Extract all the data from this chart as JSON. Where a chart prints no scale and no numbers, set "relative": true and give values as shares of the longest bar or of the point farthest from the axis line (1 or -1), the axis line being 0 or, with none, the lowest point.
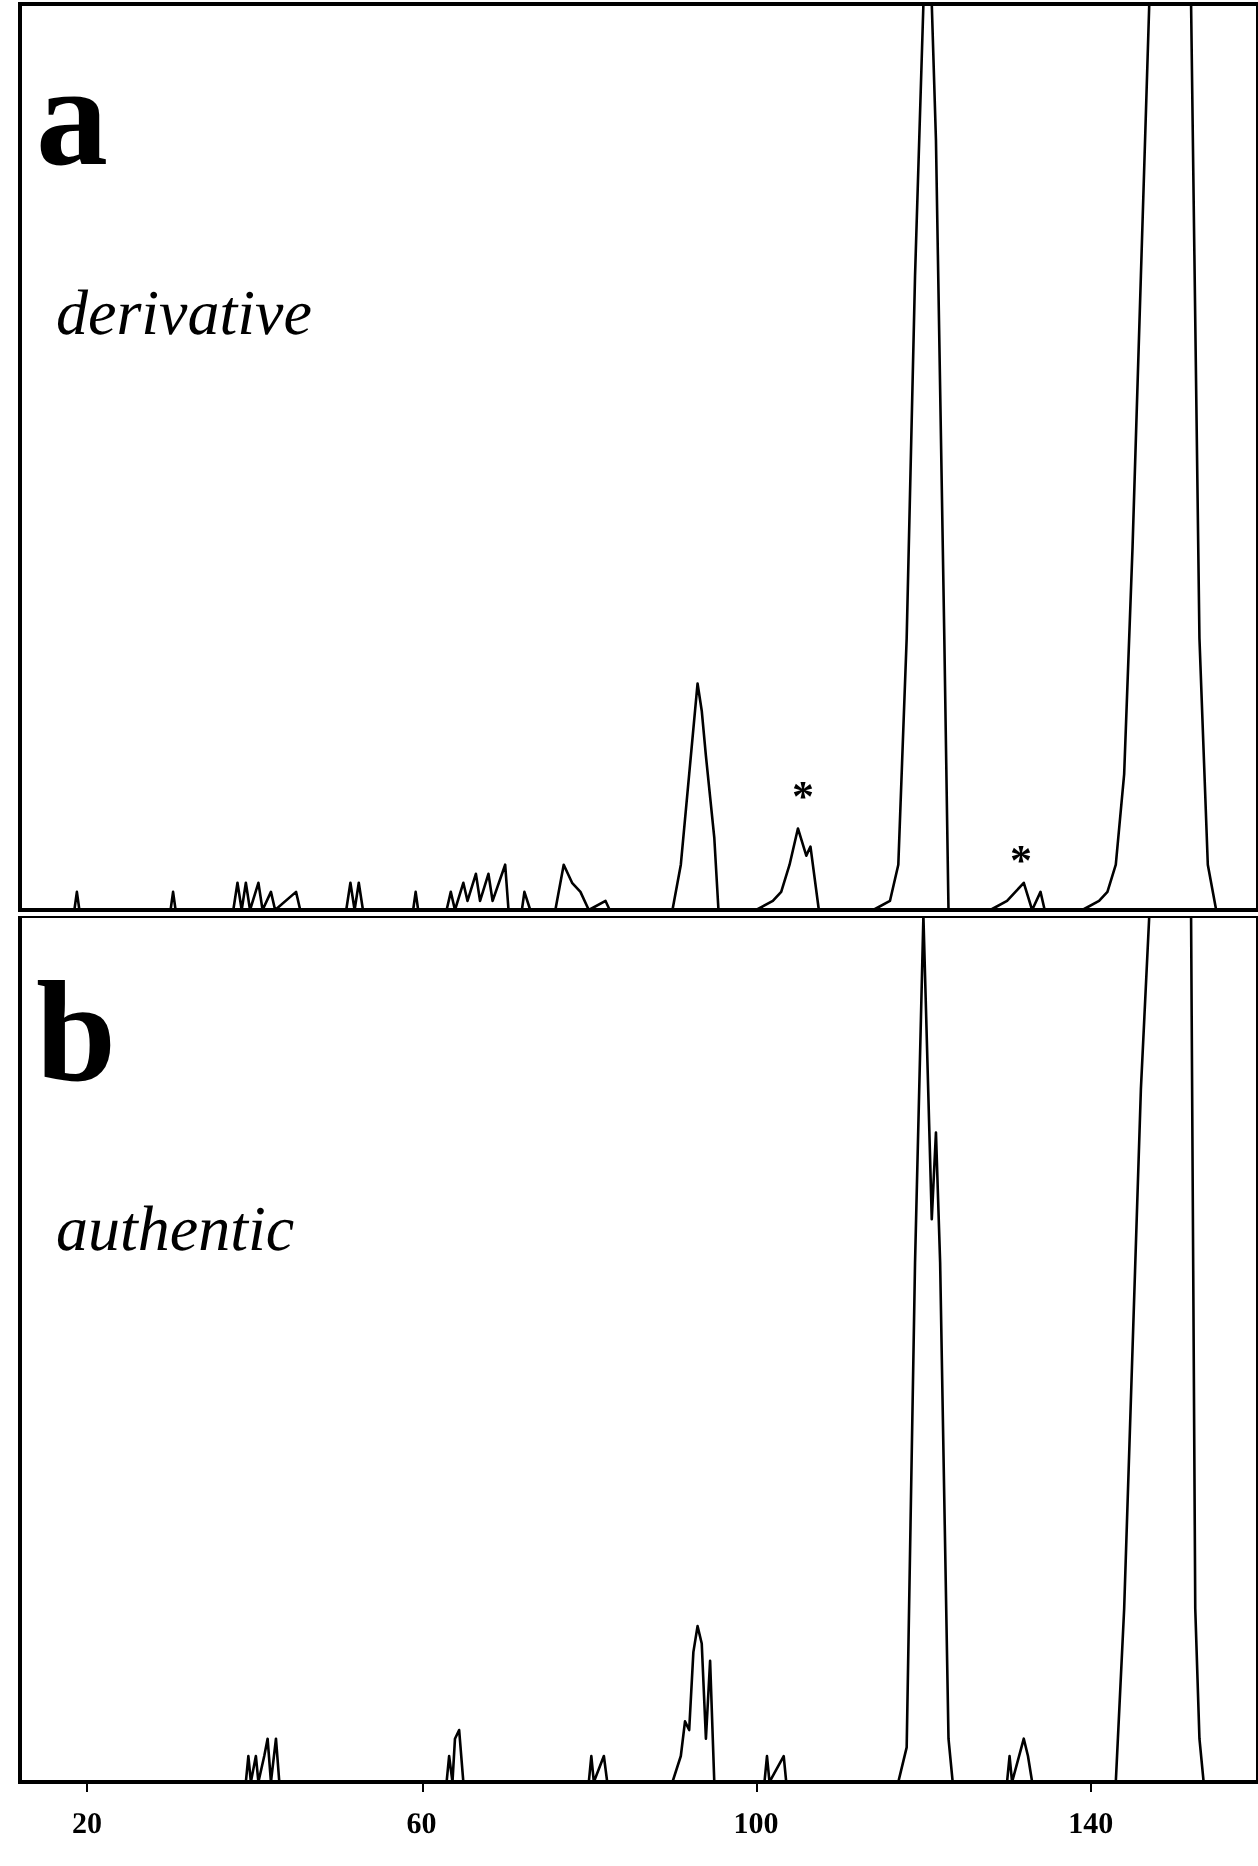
{
  "chart_data": [
    {
      "type": "line",
      "relative": true,
      "color": "#000000",
      "xlim": [
        12,
        160
      ],
      "xticks": [
        20,
        60,
        100,
        140
      ],
      "tick_labels": false,
      "annotations": [
        "a",
        "derivative",
        "*",
        "*"
      ],
      "x": [
        12,
        18.5,
        18.8,
        19.1,
        30,
        30.3,
        30.6,
        37.5,
        38,
        38.5,
        39,
        39.5,
        40.5,
        41,
        42,
        42.5,
        45,
        45.5,
        51,
        51.5,
        52,
        52.5,
        53,
        59,
        59.3,
        59.6,
        63,
        63.5,
        64,
        65,
        65.5,
        66.5,
        67,
        68,
        68.5,
        70,
        70.4,
        72,
        72.3,
        73,
        76,
        77,
        78,
        79,
        80,
        82,
        82.5,
        90,
        91,
        92,
        93,
        93.5,
        94,
        95,
        95.5,
        100,
        102,
        103,
        104,
        105,
        106,
        106.5,
        107.5,
        114,
        116,
        117,
        118,
        119,
        120,
        121,
        121.5,
        122.5,
        123,
        128,
        130,
        131,
        132,
        133,
        134,
        134.5,
        139,
        141,
        142,
        143,
        144,
        145,
        146,
        147,
        152,
        153,
        154,
        155,
        160
      ],
      "values": [
        0,
        0,
        0.02,
        0,
        0,
        0.02,
        0,
        0,
        0.03,
        0,
        0.03,
        0,
        0.03,
        0,
        0.02,
        0,
        0.02,
        0,
        0,
        0.03,
        0,
        0.03,
        0,
        0,
        0.02,
        0,
        0,
        0.02,
        0,
        0.03,
        0.01,
        0.04,
        0.01,
        0.04,
        0.01,
        0.05,
        0,
        0,
        0.02,
        0,
        0,
        0.05,
        0.03,
        0.02,
        0,
        0.01,
        0,
        0,
        0.05,
        0.15,
        0.25,
        0.22,
        0.17,
        0.08,
        0,
        0,
        0.01,
        0.02,
        0.05,
        0.09,
        0.06,
        0.07,
        0,
        0,
        0.01,
        0.05,
        0.3,
        0.7,
        1,
        1,
        0.85,
        0.3,
        0,
        0,
        0.01,
        0.02,
        0.03,
        0,
        0.02,
        0,
        0,
        0.01,
        0.02,
        0.05,
        0.15,
        0.4,
        0.7,
        1,
        1,
        0.3,
        0.05,
        0,
        0
      ]
    },
    {
      "type": "line",
      "relative": true,
      "color": "#000000",
      "xlim": [
        12,
        160
      ],
      "xticks": [
        20,
        60,
        100,
        140
      ],
      "tick_labels": "x",
      "annotations": [
        "b",
        "authentic"
      ],
      "x": [
        12,
        39,
        39.3,
        39.6,
        40.2,
        40.5,
        41.2,
        41.6,
        42,
        42.6,
        43,
        63,
        63.3,
        63.7,
        64,
        64.5,
        65,
        80,
        80.3,
        80.6,
        81.8,
        82.2,
        90,
        91,
        91.5,
        92,
        92.5,
        93,
        93.5,
        94,
        94.5,
        95,
        101,
        101.3,
        101.6,
        103.3,
        103.6,
        117,
        118,
        119,
        120,
        121,
        121.5,
        122,
        123,
        123.5,
        130,
        130.3,
        130.6,
        132,
        132.5,
        133,
        143,
        144,
        145,
        146,
        147,
        152,
        152.5,
        153,
        153.5,
        160
      ],
      "values": [
        0,
        0,
        0.03,
        0,
        0.03,
        0,
        0.03,
        0.05,
        0,
        0.05,
        0,
        0,
        0.03,
        0,
        0.05,
        0.06,
        0,
        0,
        0.03,
        0,
        0.03,
        0,
        0,
        0.03,
        0.07,
        0.06,
        0.15,
        0.18,
        0.16,
        0.05,
        0.14,
        0,
        0,
        0.03,
        0,
        0.03,
        0,
        0,
        0.04,
        0.6,
        1,
        0.65,
        0.75,
        0.6,
        0.05,
        0,
        0,
        0.03,
        0,
        0.05,
        0.03,
        0,
        0,
        0.2,
        0.5,
        0.8,
        1,
        1,
        0.2,
        0.05,
        0,
        0
      ]
    }
  ]
}
